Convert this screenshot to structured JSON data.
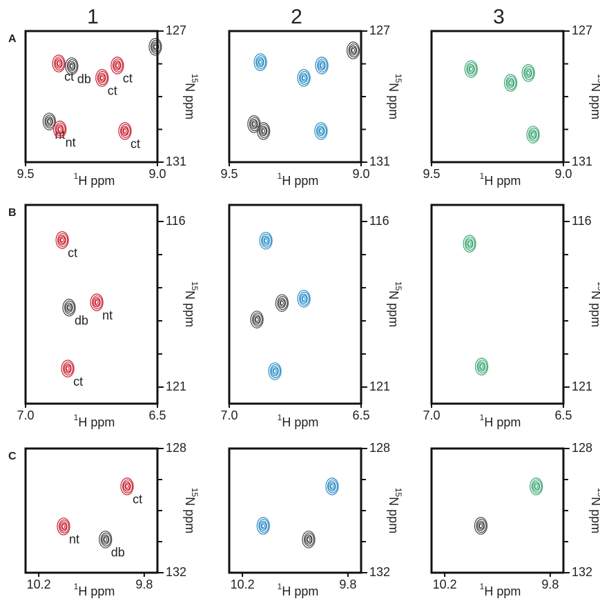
{
  "columns": [
    "1",
    "2",
    "3"
  ],
  "xlabel": {
    "sup": "1",
    "text": "H ppm"
  },
  "ylabel": {
    "sup": "15",
    "text": "N ppm"
  },
  "rows": [
    {
      "label": "A",
      "xlim": [
        9.5,
        9.0
      ],
      "ylim": [
        127,
        131
      ],
      "xticks": [
        9.5,
        {
          "value": 9.0,
          "label": "9.0"
        }
      ],
      "yticks": [
        127,
        131
      ],
      "yminorticks": [
        128,
        129,
        130
      ],
      "panels": [
        {
          "peaks": [
            {
              "x": 9.374,
              "y": 127.99,
              "color": "#c8202e",
              "label": "ct"
            },
            {
              "x": 9.325,
              "y": 128.07,
              "color": "#444444",
              "label": "db"
            },
            {
              "x": 9.21,
              "y": 128.43,
              "color": "#c8202e",
              "label": "ct"
            },
            {
              "x": 9.152,
              "y": 128.05,
              "color": "#c8202e",
              "label": "ct"
            },
            {
              "x": 9.008,
              "y": 127.48,
              "color": "#444444"
            },
            {
              "x": 9.41,
              "y": 129.76,
              "color": "#444444",
              "label": "nt"
            },
            {
              "x": 9.37,
              "y": 130.0,
              "color": "#c8202e",
              "label": "nt"
            },
            {
              "x": 9.123,
              "y": 130.05,
              "color": "#c8202e",
              "label": "ct"
            }
          ]
        },
        {
          "peaks": [
            {
              "x": 9.382,
              "y": 127.95,
              "color": "#2a8cc4"
            },
            {
              "x": 9.217,
              "y": 128.43,
              "color": "#2a8cc4"
            },
            {
              "x": 9.149,
              "y": 128.05,
              "color": "#2a8cc4"
            },
            {
              "x": 9.152,
              "y": 130.05,
              "color": "#2a8cc4"
            },
            {
              "x": 9.03,
              "y": 127.59,
              "color": "#444444"
            },
            {
              "x": 9.406,
              "y": 129.84,
              "color": "#444444"
            },
            {
              "x": 9.37,
              "y": 130.05,
              "color": "#444444"
            }
          ]
        },
        {
          "peaks": [
            {
              "x": 9.35,
              "y": 128.16,
              "color": "#3aa673"
            },
            {
              "x": 9.2,
              "y": 128.58,
              "color": "#3aa673"
            },
            {
              "x": 9.133,
              "y": 128.28,
              "color": "#3aa673"
            },
            {
              "x": 9.115,
              "y": 130.16,
              "color": "#3aa673"
            }
          ]
        }
      ]
    },
    {
      "label": "B",
      "xlim": [
        7.0,
        6.5
      ],
      "ylim": [
        115.5,
        121.5
      ],
      "xticks": [
        {
          "value": 7.0,
          "label": "7.0"
        },
        6.5
      ],
      "yticks": [
        116,
        121
      ],
      "yminorticks": [
        117,
        118,
        119,
        120
      ],
      "panels": [
        {
          "peaks": [
            {
              "x": 6.861,
              "y": 116.56,
              "color": "#c8202e",
              "label": "ct"
            },
            {
              "x": 6.835,
              "y": 118.6,
              "color": "#444444",
              "label": "db"
            },
            {
              "x": 6.73,
              "y": 118.44,
              "color": "#c8202e",
              "label": "nt"
            },
            {
              "x": 6.84,
              "y": 120.44,
              "color": "#c8202e",
              "label": "ct"
            }
          ]
        },
        {
          "peaks": [
            {
              "x": 6.861,
              "y": 116.58,
              "color": "#2a8cc4"
            },
            {
              "x": 6.8,
              "y": 118.46,
              "color": "#444444"
            },
            {
              "x": 6.717,
              "y": 118.33,
              "color": "#2a8cc4"
            },
            {
              "x": 6.895,
              "y": 118.96,
              "color": "#444444"
            },
            {
              "x": 6.827,
              "y": 120.52,
              "color": "#2a8cc4"
            }
          ]
        },
        {
          "peaks": [
            {
              "x": 6.856,
              "y": 116.67,
              "color": "#3aa673"
            },
            {
              "x": 6.81,
              "y": 120.38,
              "color": "#3aa673"
            }
          ]
        }
      ]
    },
    {
      "label": "C",
      "xlim": [
        10.25,
        9.75
      ],
      "ylim": [
        128,
        132
      ],
      "xticks": [
        10.2,
        9.8
      ],
      "yticks": [
        128,
        132
      ],
      "yminorticks": [
        129,
        130,
        131
      ],
      "panels": [
        {
          "peaks": [
            {
              "x": 9.865,
              "y": 129.22,
              "color": "#c8202e",
              "label": "ct"
            },
            {
              "x": 10.106,
              "y": 130.51,
              "color": "#c8202e",
              "label": "nt"
            },
            {
              "x": 9.947,
              "y": 130.93,
              "color": "#444444",
              "label": "db"
            }
          ]
        },
        {
          "peaks": [
            {
              "x": 9.86,
              "y": 129.22,
              "color": "#2a8cc4"
            },
            {
              "x": 10.121,
              "y": 130.49,
              "color": "#2a8cc4"
            },
            {
              "x": 9.949,
              "y": 130.93,
              "color": "#444444"
            }
          ]
        },
        {
          "peaks": [
            {
              "x": 9.853,
              "y": 129.22,
              "color": "#3aa673"
            },
            {
              "x": 10.063,
              "y": 130.49,
              "color": "#444444"
            }
          ]
        }
      ]
    }
  ]
}
